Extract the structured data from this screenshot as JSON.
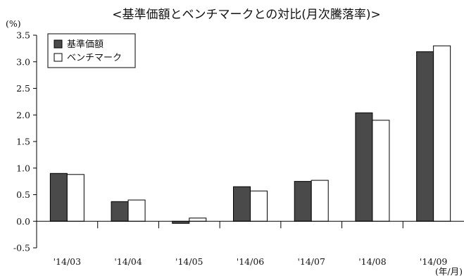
{
  "chart_data": {
    "type": "bar",
    "title": "<基準価額とベンチマークとの対比(月次騰落率)>",
    "y_unit": "(%)",
    "x_unit": "(年/月)",
    "categories": [
      "'14/03",
      "'14/04",
      "'14/05",
      "'14/06",
      "'14/07",
      "'14/08",
      "'14/09"
    ],
    "series": [
      {
        "name": "基準価額",
        "color": "#4a4a4a",
        "values": [
          0.9,
          0.37,
          -0.04,
          0.65,
          0.75,
          2.04,
          3.19
        ]
      },
      {
        "name": "ベンチマーク",
        "color": "#ffffff",
        "values": [
          0.88,
          0.4,
          0.06,
          0.57,
          0.77,
          1.9,
          3.3
        ]
      }
    ],
    "ylim": [
      -0.5,
      3.5
    ],
    "yticks": [
      "-0.5",
      "0.0",
      "0.5",
      "1.0",
      "1.5",
      "2.0",
      "2.5",
      "3.0",
      "3.5"
    ],
    "grid": false,
    "legend_position": "top-left"
  }
}
